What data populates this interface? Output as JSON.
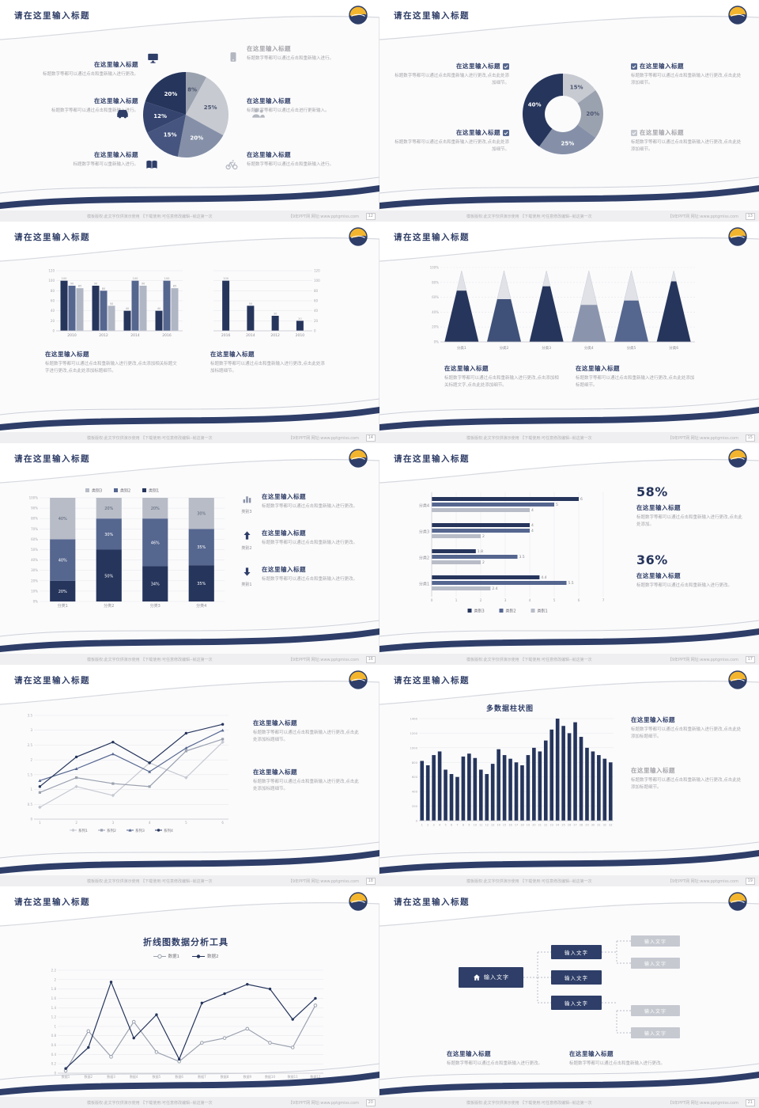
{
  "common": {
    "slide_title": "请在这里输入标题",
    "footer_left": "模板版权:此文字仅供演示使用 【下载使用:可任意修改编辑--就这第一次",
    "footer_right": "【9年PPT网  网址:www.pptgmiss.com",
    "colors": {
      "navy": "#26355c",
      "navy_box": "#2e3e68",
      "medium_blue": "#55668f",
      "slate": "#8590a8",
      "gray": "#9ba2af",
      "light_gray": "#c7cad1",
      "accent_gold": "#f3b52e"
    }
  },
  "slides": [
    {
      "page": "12",
      "icons": [
        "monitor",
        "car",
        "book",
        "mobile",
        "users",
        "bike"
      ],
      "left_blocks": [
        {
          "title": "在这里输入标题",
          "body": "标题数字等都可以通过点击和重新输入进行更改。"
        },
        {
          "title": "在这里输入标题",
          "body": "标题数字等都可以通过点击和重新输入进行。"
        },
        {
          "title": "在这里输入标题",
          "body": "标题数字等都可以重新输入进行。"
        }
      ],
      "right_blocks": [
        {
          "title": "在这里输入标题",
          "body": "标题数字等都可以通过点击和重新输入进行。"
        },
        {
          "title": "在这里输入标题",
          "body": "标题数字等都可以通过点击进行更新输入。"
        },
        {
          "title": "在这里输入标题",
          "body": "标题数字等都可以通过点击和重新输入进行。"
        }
      ],
      "chart": {
        "type": "pie",
        "labels": [
          "8%",
          "25%",
          "20%",
          "15%",
          "12%",
          "20%"
        ],
        "values": [
          8,
          25,
          20,
          15,
          12,
          20
        ],
        "colors": [
          "#9ba2af",
          "#c7cad1",
          "#8590a8",
          "#46557f",
          "#34446f",
          "#26355c"
        ]
      }
    },
    {
      "page": "13",
      "left_blocks": [
        {
          "icon": "checkbox",
          "check_color": "#55668f",
          "title": "在这里输入标题",
          "body": "标题数字等都可以通过点击和重新输入进行更改,点击此处添加细节。"
        },
        {
          "icon": "checkbox",
          "check_color": "#55668f",
          "title": "在这里输入标题",
          "body": "标题数字等都可以通过点击和重新输入进行更改,点击此处添加细节。"
        }
      ],
      "right_blocks": [
        {
          "icon": "checkbox",
          "check_color": "#55668f",
          "title": "在这里输入标题",
          "body": "标题数字等都可以通过点击和重新输入进行更改,点击此处添加细节。"
        },
        {
          "icon": "checkbox",
          "check_color": "#c3c6cd",
          "title": "在这里输入标题",
          "body": "标题数字等都可以通过点击和重新输入进行更改,点击此处添加细节。"
        }
      ],
      "chart": {
        "type": "donut",
        "labels": [
          "15%",
          "20%",
          "25%",
          "40%"
        ],
        "values": [
          15,
          20,
          25,
          40
        ],
        "colors": [
          "#c7cad1",
          "#9ba2af",
          "#8590a8",
          "#26355c"
        ]
      }
    },
    {
      "page": "14",
      "charts": [
        {
          "type": "groupbar",
          "axis": "left",
          "categories": [
            "2010",
            "2012",
            "2014",
            "2016"
          ],
          "ymax": 120,
          "yticks": [
            0,
            20,
            40,
            60,
            80,
            100,
            120
          ],
          "series": [
            {
              "color": "#26355c",
              "values": [
                100,
                90,
                40,
                40
              ]
            },
            {
              "color": "#55668f",
              "values": [
                90,
                80,
                100,
                100
              ]
            },
            {
              "color": "#b0b6c3",
              "values": [
                85,
                50,
                90,
                85
              ]
            }
          ]
        },
        {
          "type": "groupbar",
          "axis": "right",
          "categories": [
            "2016",
            "2014",
            "2012",
            "2010"
          ],
          "ymax": 120,
          "yticks": [
            0,
            20,
            40,
            60,
            80,
            100,
            120
          ],
          "series": [
            {
              "color": "#26355c",
              "values": [
                100,
                50,
                30,
                20
              ]
            }
          ]
        }
      ],
      "blocks": [
        {
          "title": "在这里输入标题",
          "body": "标题数字等都可以通过点击和重新输入进行更改,点击添加相关标题文字进行更改,点击此处添加标题细节。"
        },
        {
          "title": "在这里输入标题",
          "body": "标题数字等都可以通过点击和重新输入进行更改,点击此处添加标题细节。"
        }
      ]
    },
    {
      "page": "15",
      "chart": {
        "type": "pyramid",
        "categories": [
          "分类1",
          "分类2",
          "分类3",
          "分类4",
          "分类5",
          "分类6"
        ],
        "values": [
          72,
          60,
          78,
          52,
          58,
          85
        ],
        "colors": [
          "#26355c",
          "#3f5179",
          "#26355c",
          "#8a94ad",
          "#55668f",
          "#26355c"
        ],
        "yticks": [
          0,
          20,
          40,
          60,
          80,
          100
        ]
      },
      "blocks": [
        {
          "title": "在这里输入标题",
          "body": "标题数字等都可以通过点击和重新输入进行更改,点击添加相关标题文字,点击此处添加细节。"
        },
        {
          "title": "在这里输入标题",
          "body": "标题数字等都可以通过点击和重新输入进行更改,点击此处添加标题细节。"
        }
      ]
    },
    {
      "page": "16",
      "chart": {
        "type": "stackbar",
        "categories": [
          "分类1",
          "分类2",
          "分类3",
          "分类4"
        ],
        "legend": [
          "类别3",
          "类别2",
          "类别1"
        ],
        "legend_colors": [
          "#b7bcc7",
          "#55668f",
          "#26355c"
        ],
        "series": [
          {
            "name": "类别1",
            "color": "#26355c",
            "values": [
              20,
              50,
              34,
              35
            ]
          },
          {
            "name": "类别2",
            "color": "#55668f",
            "values": [
              40,
              30,
              46,
              35
            ]
          },
          {
            "name": "类别3",
            "color": "#b7bcc7",
            "values": [
              40,
              20,
              20,
              30
            ]
          }
        ],
        "ymax": 100
      },
      "items": [
        {
          "icon": "chart-bars",
          "icon_color": "#8b93a8",
          "tag": "类别3",
          "title": "在这里输入标题",
          "body": "标题数字等都可以通过点击和重新输入进行更改。"
        },
        {
          "icon": "arrow-up",
          "icon_color": "#2e3e68",
          "tag": "类别2",
          "title": "在这里输入标题",
          "body": "标题数字等都可以通过点击和重新输入进行更改。"
        },
        {
          "icon": "arrow-down",
          "icon_color": "#2e3e68",
          "tag": "类别1",
          "title": "在这里输入标题",
          "body": "标题数字等都可以通过点击和重新输入进行更改。"
        }
      ]
    },
    {
      "page": "17",
      "chart": {
        "type": "hbar",
        "categories": [
          "分类4",
          "分类3",
          "分类2",
          "分类1"
        ],
        "series": [
          {
            "name": "类别3",
            "color": "#26355c",
            "values": [
              6,
              4,
              1.8,
              4.4
            ]
          },
          {
            "name": "类别2",
            "color": "#55668f",
            "values": [
              5,
              4,
              3.5,
              5.5
            ]
          },
          {
            "name": "类别1",
            "color": "#b7bcc7",
            "values": [
              4,
              2,
              2,
              2.4
            ]
          }
        ],
        "xmax": 7,
        "xticks": [
          0,
          1,
          2,
          3,
          4,
          5,
          6,
          7
        ]
      },
      "stats": [
        {
          "value": "58%",
          "title": "在这里输入标题",
          "body": "标题数字等都可以通过点击和重新输入进行更改,点击此处添加。"
        },
        {
          "value": "36%",
          "title": "在这里输入标题",
          "body": "标题数字等都可以通过点击和重新输入进行更改。"
        }
      ]
    },
    {
      "page": "18",
      "chart": {
        "type": "line",
        "legend_inline": true,
        "x_labels": [
          "1",
          "2",
          "3",
          "4",
          "5",
          "6"
        ],
        "ymax": 3.5,
        "yticks": [
          0,
          0.5,
          1,
          1.5,
          2,
          2.5,
          3,
          3.5
        ],
        "series": [
          {
            "name": "系列1",
            "color": "#c6c9d1",
            "marker": "diamond",
            "values": [
              0.4,
              1.1,
              0.8,
              1.9,
              1.4,
              2.6
            ]
          },
          {
            "name": "系列2",
            "color": "#9aa1ae",
            "marker": "square",
            "values": [
              0.9,
              1.4,
              1.2,
              1.1,
              2.3,
              2.7
            ]
          },
          {
            "name": "系列3",
            "color": "#55668f",
            "marker": "triangle",
            "values": [
              1.3,
              1.7,
              2.2,
              1.6,
              2.4,
              3.0
            ]
          },
          {
            "name": "系列4",
            "color": "#26355c",
            "marker": "circle",
            "values": [
              1.1,
              2.1,
              2.6,
              1.9,
              2.9,
              3.2
            ]
          }
        ]
      },
      "blocks": [
        {
          "title": "在这里输入标题",
          "body": "标题数字等都可以通过点击和重新输入进行更改,点击此处添加标题细节。"
        },
        {
          "title": "在这里输入标题",
          "body": "标题数字等都可以通过点击和重新输入进行更改,点击此处添加标题细节。"
        }
      ]
    },
    {
      "page": "19",
      "chart_title": "多数据柱状图",
      "chart": {
        "type": "columns",
        "color": "#26355c",
        "ymax": 1400,
        "yticks": [
          0,
          200,
          400,
          600,
          800,
          1000,
          1200,
          1400
        ],
        "x_labels": [
          "1",
          "2",
          "3",
          "4",
          "5",
          "6",
          "7",
          "8",
          "9",
          "10",
          "11",
          "12",
          "13",
          "14",
          "15",
          "16",
          "17",
          "18",
          "19",
          "20",
          "21",
          "22",
          "23",
          "24",
          "25",
          "26",
          "27",
          "28",
          "29",
          "30",
          "31",
          "32",
          "33"
        ],
        "values": [
          820,
          760,
          900,
          950,
          700,
          640,
          600,
          880,
          920,
          860,
          700,
          640,
          780,
          980,
          900,
          850,
          800,
          760,
          900,
          1000,
          950,
          1100,
          1250,
          1400,
          1300,
          1200,
          1350,
          1150,
          1000,
          950,
          900,
          850,
          800
        ]
      },
      "blocks": [
        {
          "title": "在这里输入标题",
          "body": "标题数字等都可以通过点击和重新输入进行更改,点击此处添加标题细节。"
        },
        {
          "title": "在这里输入标题",
          "body": "标题数字等都可以通过点击和重新输入进行更改,点击此处添加标题细节。"
        }
      ]
    },
    {
      "page": "20",
      "chart_title": "折线图数据分析工具",
      "chart": {
        "type": "line",
        "legend_inline": false,
        "x_labels": [
          "数据1",
          "数据2",
          "数据3",
          "数据4",
          "数据5",
          "数据6",
          "数据7",
          "数据8",
          "数据9",
          "数据10",
          "数据11",
          "数据12"
        ],
        "ymax": 2.2,
        "yticks": [
          0,
          0.2,
          0.4,
          0.6,
          0.8,
          1,
          1.2,
          1.4,
          1.6,
          1.8,
          2,
          2.2
        ],
        "series": [
          {
            "name": "数据1",
            "color": "#9aa1ae",
            "marker": "open",
            "values": [
              0.05,
              0.9,
              0.35,
              1.1,
              0.45,
              0.25,
              0.65,
              0.75,
              0.95,
              0.65,
              0.55,
              1.45
            ]
          },
          {
            "name": "数据2",
            "color": "#26355c",
            "marker": "circle",
            "values": [
              0.1,
              0.55,
              1.95,
              0.75,
              1.25,
              0.3,
              1.5,
              1.7,
              1.9,
              1.8,
              1.15,
              1.6
            ]
          }
        ]
      }
    },
    {
      "page": "21",
      "diagram": {
        "root_icon": "home",
        "root": "输入文字",
        "branches": [
          "输入文字",
          "输入文字",
          "输入文字"
        ],
        "leaves": [
          "输入文字",
          "输入文字",
          "输入文字",
          "输入文字"
        ]
      },
      "blocks": [
        {
          "title": "在这里输入标题",
          "body": "标题数字等都可以通过点击和重新输入进行更改。"
        },
        {
          "title": "在这里输入标题",
          "body": "标题数字等都可以通过点击和重新输入进行更改。"
        }
      ]
    }
  ]
}
